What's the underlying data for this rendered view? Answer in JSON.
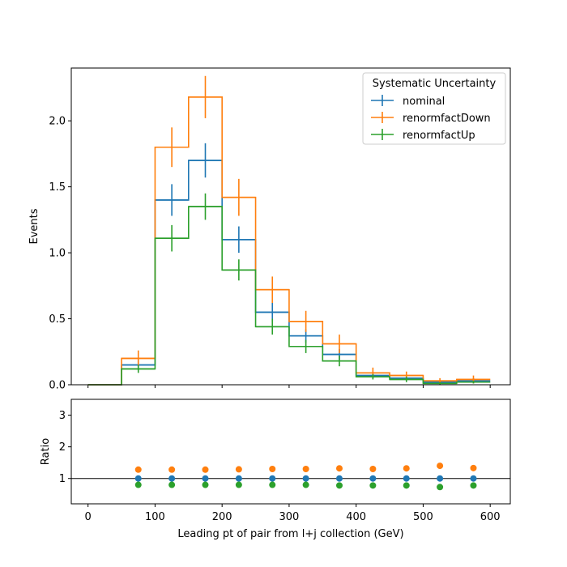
{
  "chart_data": [
    {
      "type": "line",
      "drawstyle": "step-histogram",
      "ylabel": "Events",
      "xlim": [
        -25,
        630
      ],
      "ylim": [
        0,
        2.4
      ],
      "yticks": [
        0.0,
        0.5,
        1.0,
        1.5,
        2.0
      ],
      "ytick_labels": [
        "0.0",
        "0.5",
        "1.0",
        "1.5",
        "2.0"
      ],
      "xticks": [
        0,
        100,
        200,
        300,
        400,
        500,
        600
      ],
      "bin_edges": [
        0,
        50,
        100,
        150,
        200,
        250,
        300,
        350,
        400,
        450,
        500,
        550,
        600
      ],
      "legend": {
        "title": "Systematic Uncertainty",
        "placement": "top-right"
      },
      "series": [
        {
          "name": "nominal",
          "color": "#1f77b4",
          "values": [
            0.0,
            0.15,
            1.4,
            1.7,
            1.1,
            0.55,
            0.37,
            0.23,
            0.07,
            0.05,
            0.02,
            0.03
          ],
          "errors": [
            0.0,
            0.04,
            0.12,
            0.13,
            0.1,
            0.07,
            0.05,
            0.04,
            0.02,
            0.02,
            0.01,
            0.02
          ]
        },
        {
          "name": "renormfactDown",
          "color": "#ff7f0e",
          "values": [
            0.0,
            0.2,
            1.8,
            2.18,
            1.42,
            0.72,
            0.48,
            0.31,
            0.09,
            0.07,
            0.03,
            0.04
          ],
          "errors": [
            0.0,
            0.06,
            0.15,
            0.16,
            0.14,
            0.1,
            0.08,
            0.07,
            0.04,
            0.03,
            0.02,
            0.03
          ]
        },
        {
          "name": "renormfactUp",
          "color": "#2ca02c",
          "values": [
            0.0,
            0.12,
            1.11,
            1.35,
            0.87,
            0.44,
            0.29,
            0.18,
            0.06,
            0.04,
            0.01,
            0.02
          ],
          "errors": [
            0.0,
            0.03,
            0.1,
            0.1,
            0.08,
            0.06,
            0.05,
            0.04,
            0.02,
            0.02,
            0.01,
            0.01
          ]
        }
      ]
    },
    {
      "type": "scatter",
      "xlabel": "Leading pt of pair from l+j collection (GeV)",
      "ylabel": "Ratio",
      "xlim": [
        -25,
        630
      ],
      "ylim": [
        0.2,
        3.5
      ],
      "yticks": [
        1,
        2,
        3
      ],
      "ytick_labels": [
        "1",
        "2",
        "3"
      ],
      "xticks": [
        0,
        100,
        200,
        300,
        400,
        500,
        600
      ],
      "xtick_labels": [
        "0",
        "100",
        "200",
        "300",
        "400",
        "500",
        "600"
      ],
      "reference_line": 1,
      "x": [
        75,
        125,
        175,
        225,
        275,
        325,
        375,
        425,
        475,
        525,
        575
      ],
      "series": [
        {
          "name": "nominal",
          "color": "#1f77b4",
          "values": [
            1.0,
            1.0,
            1.0,
            1.0,
            1.0,
            1.0,
            1.0,
            1.0,
            1.0,
            1.0,
            1.0
          ]
        },
        {
          "name": "renormfactDown",
          "color": "#ff7f0e",
          "values": [
            1.28,
            1.28,
            1.28,
            1.29,
            1.3,
            1.3,
            1.32,
            1.3,
            1.32,
            1.4,
            1.33
          ]
        },
        {
          "name": "renormfactUp",
          "color": "#2ca02c",
          "values": [
            0.8,
            0.8,
            0.8,
            0.8,
            0.8,
            0.8,
            0.78,
            0.78,
            0.78,
            0.73,
            0.78
          ]
        }
      ]
    }
  ]
}
